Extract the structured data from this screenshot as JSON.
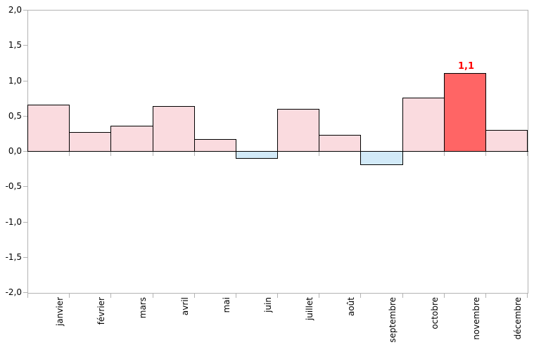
{
  "chart_data": {
    "type": "bar",
    "categories": [
      "janvier",
      "février",
      "mars",
      "avril",
      "mai",
      "juin",
      "juillet",
      "août",
      "septembre",
      "octobre",
      "novembre",
      "décembre"
    ],
    "values": [
      0.66,
      0.27,
      0.36,
      0.64,
      0.17,
      -0.1,
      0.6,
      0.23,
      -0.19,
      0.76,
      1.1,
      0.3
    ],
    "title": "",
    "xlabel": "",
    "ylabel": "",
    "ylim": [
      -2.0,
      2.0
    ],
    "ytick_step": 0.5,
    "ytick_labels": [
      "2,0",
      "1,5",
      "1,0",
      "0,5",
      "0,0",
      "-0,5",
      "-1,0",
      "-1,5",
      "-2,0"
    ],
    "data_labels": [
      {
        "index": 10,
        "text": "1,1"
      }
    ],
    "legend": "none",
    "grid": "none",
    "colors": {
      "positive_fill": "#fadbdf",
      "negative_fill": "#d2eaf8",
      "highlight_fill": "#ff6565",
      "highlight_index": 10,
      "bar_border": "#000000",
      "axis_line": "#b3b3b3",
      "zero_line": "#000000",
      "axis_text": "#000000",
      "data_label_text": "#ff0000"
    }
  }
}
